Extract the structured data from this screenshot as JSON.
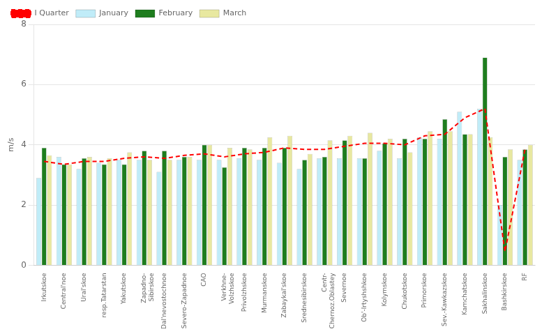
{
  "chart_data": {
    "type": "bar",
    "ylabel": "m/s",
    "categories": [
      "Irkutskoe",
      "Central'noe",
      "Ural'skoe",
      "resp.Tatarstan",
      "Yakutskoe",
      "Zapadno-\nSibirskoe",
      "Dal'nevostochnoe",
      "Severo-Zapadnoe",
      "CAO",
      "Verkhne-\nVolzhskoe",
      "Privolzhskoe",
      "Murmanskoe",
      "Zabaykal'skoe",
      "Srednesibirskoe",
      "Centr-\nChernoz.Oblastey",
      "Severnoe",
      "Ob'-Irtyshshkoe",
      "Kolymskoe",
      "Chukotskoe",
      "Primorskoe",
      "Sev.-Kawkazskoe",
      "Kamchatskoe",
      "Sakhalinskoe",
      "Bashkirskoe",
      "RF"
    ],
    "series": [
      {
        "name": "January",
        "color": "#c0ecf8",
        "values": [
          2.9,
          3.6,
          3.2,
          3.4,
          3.5,
          3.5,
          3.1,
          3.5,
          3.5,
          3.5,
          3.55,
          3.5,
          3.4,
          3.2,
          3.55,
          3.55,
          3.55,
          3.8,
          3.55,
          4.25,
          4.2,
          5.1,
          5.2,
          2.0,
          3.5
        ]
      },
      {
        "name": "February",
        "color": "#1e7d1e",
        "values": [
          3.9,
          3.35,
          3.55,
          3.35,
          3.35,
          3.8,
          3.8,
          3.6,
          4.0,
          3.25,
          3.9,
          3.9,
          3.9,
          3.5,
          3.6,
          4.15,
          3.55,
          4.05,
          4.2,
          4.2,
          4.85,
          4.35,
          6.9,
          3.6,
          3.85
        ]
      },
      {
        "name": "March",
        "color": "#e8e8a0",
        "values": [
          3.65,
          3.35,
          3.6,
          3.55,
          3.75,
          3.5,
          3.5,
          3.6,
          4.0,
          3.9,
          3.85,
          4.25,
          4.3,
          3.7,
          4.15,
          4.3,
          4.4,
          4.2,
          3.75,
          4.45,
          4.45,
          4.35,
          4.25,
          3.85,
          4.0
        ]
      },
      {
        "name": "I Quarter",
        "type": "line",
        "color": "#ff0000",
        "line_style": "dashed",
        "values": [
          3.45,
          3.35,
          3.45,
          3.45,
          3.55,
          3.6,
          3.55,
          3.65,
          3.7,
          3.6,
          3.7,
          3.75,
          3.9,
          3.85,
          3.85,
          3.95,
          4.05,
          4.05,
          4.0,
          4.3,
          4.35,
          4.9,
          5.2,
          0.45,
          3.85
        ]
      }
    ],
    "ylim": [
      0,
      8
    ],
    "yticks": [
      0,
      2,
      4,
      6,
      8
    ],
    "grid": true,
    "legend": "upper left"
  }
}
